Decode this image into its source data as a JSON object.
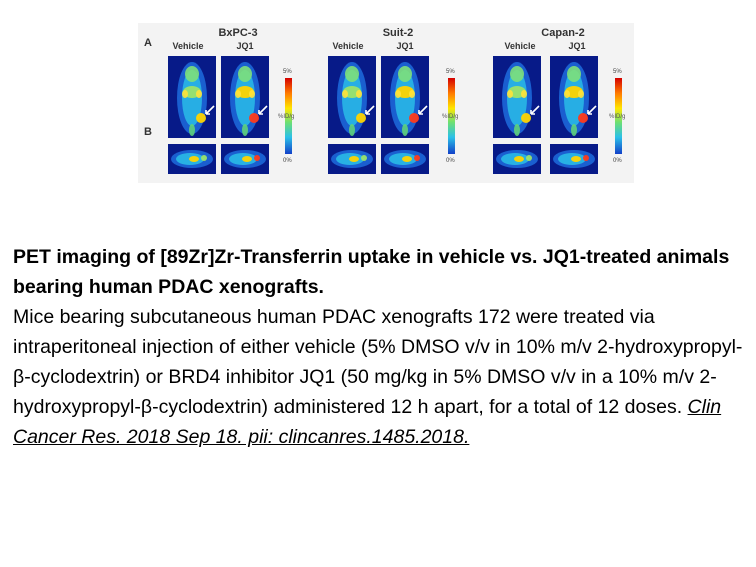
{
  "figure": {
    "row_labels": [
      "A",
      "B"
    ],
    "colorbar": {
      "max": "5%",
      "min": "0%",
      "unit": "%ID/g"
    },
    "panels": [
      {
        "title": "BxPC-3",
        "conditions": [
          "Vehicle",
          "JQ1"
        ]
      },
      {
        "title": "Suit-2",
        "conditions": [
          "Vehicle",
          "JQ1"
        ]
      },
      {
        "title": "Capan-2",
        "conditions": [
          "Vehicle",
          "JQ1"
        ]
      }
    ]
  },
  "caption": {
    "title": "PET imaging of [89Zr]Zr-Transferrin uptake in vehicle vs. JQ1-treated animals bearing human PDAC xenografts.",
    "body": "Mice bearing subcutaneous human PDAC xenografts 172 were treated via intraperitoneal injection of either vehicle (5% DMSO v/v in 10% m/v 2-hydroxypropyl-β-cyclodextrin) or BRD4 inhibitor JQ1 (50 mg/kg in 5% DMSO v/v in a 10% m/v 2- hydroxypropyl-β-cyclodextrin) administered 12 h apart, for a total of 12 doses.",
    "citation": "Clin Cancer Res. 2018 Sep 18. pii: clincanres.1485.2018."
  }
}
